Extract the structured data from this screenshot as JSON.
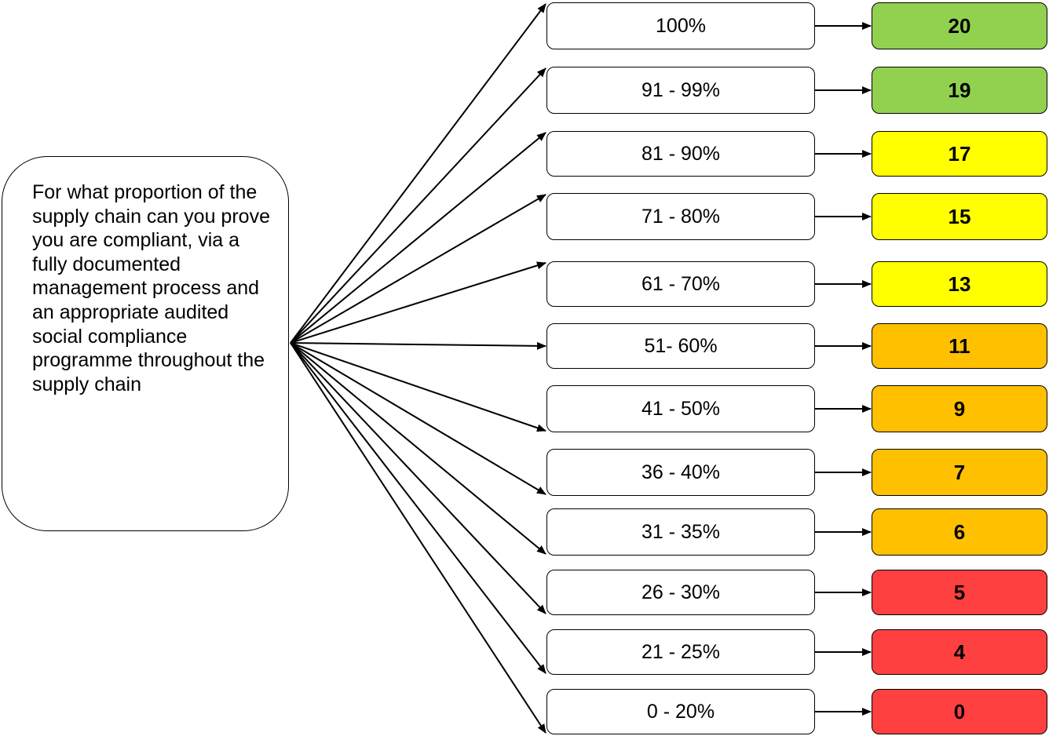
{
  "question": "For what proportion of the supply chain can you prove you are compliant, via a fully documented management process and an appropriate audited social compliance programme throughout the supply chain",
  "colors": {
    "green": "#92d050",
    "yellow": "#ffff00",
    "orange": "#ffc000",
    "red": "#ff4040"
  },
  "options": [
    {
      "range": "100%",
      "score": "20",
      "color": "green"
    },
    {
      "range": "91 - 99%",
      "score": "19",
      "color": "green"
    },
    {
      "range": "81 - 90%",
      "score": "17",
      "color": "yellow"
    },
    {
      "range": "71 - 80%",
      "score": "15",
      "color": "yellow"
    },
    {
      "range": "61 - 70%",
      "score": "13",
      "color": "yellow"
    },
    {
      "range": "51- 60%",
      "score": "11",
      "color": "orange"
    },
    {
      "range": "41 - 50%",
      "score": "9",
      "color": "orange"
    },
    {
      "range": "36 - 40%",
      "score": "7",
      "color": "orange"
    },
    {
      "range": "31 - 35%",
      "score": "6",
      "color": "orange"
    },
    {
      "range": "26 - 30%",
      "score": "5",
      "color": "red"
    },
    {
      "range": "21 - 25%",
      "score": "4",
      "color": "red"
    },
    {
      "range": "0 - 20%",
      "score": "0",
      "color": "red"
    }
  ]
}
